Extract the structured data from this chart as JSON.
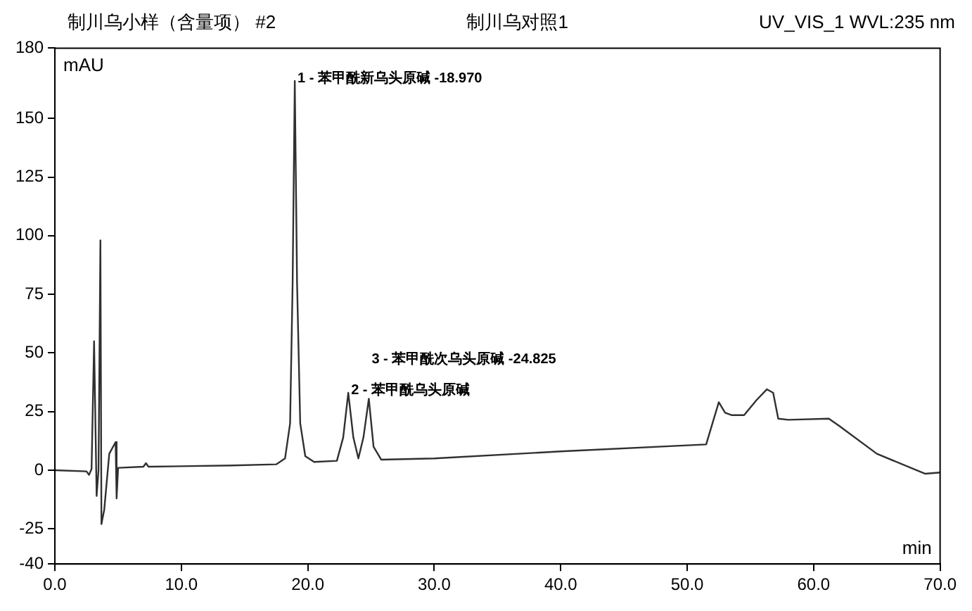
{
  "chart_data": {
    "type": "line",
    "title": "制川乌小样（含量项） #2",
    "subtitle": "制川乌对照1",
    "xlabel": "min",
    "ylabel": "mAU",
    "annotations": [
      "UV_VIS_1 WVL:235 nm",
      {
        "text": "1 - 苯甲酰新乌头原碱 -18.970",
        "x": 18.97,
        "y": 166
      },
      {
        "text": "2 - 苯甲酰乌头原碱",
        "x": 23.2,
        "y": 33
      },
      {
        "text": "3 - 苯甲酰次乌头原碱 -24.825",
        "x": 24.825,
        "y": 30.5
      }
    ],
    "x": [
      0,
      2.5,
      2.7,
      2.9,
      3.1,
      3.3,
      3.45,
      3.6,
      3.68,
      3.9,
      4.3,
      4.8,
      4.88,
      5.0,
      7.0,
      7.2,
      7.4,
      14,
      17.5,
      18.2,
      18.6,
      18.8,
      18.97,
      19.15,
      19.4,
      19.8,
      20.5,
      22.3,
      22.8,
      23.2,
      23.6,
      24.0,
      24.4,
      24.825,
      25.2,
      25.8,
      30,
      40,
      51.5,
      52.0,
      52.5,
      53.0,
      53.5,
      54.5,
      55.5,
      56.3,
      56.8,
      57.2,
      58,
      61.2,
      62,
      65,
      68.8,
      70
    ],
    "series": [
      {
        "color": "#303030",
        "values": [
          0,
          -0.5,
          -2,
          0.5,
          55,
          -11,
          0,
          98,
          -23,
          -17,
          7,
          12,
          -12,
          1,
          1.5,
          3,
          1.5,
          2,
          2.5,
          5,
          20,
          80,
          166,
          80,
          20,
          6,
          3.5,
          4,
          14,
          33,
          14,
          5,
          14,
          30.5,
          10,
          4.5,
          5,
          8,
          11,
          20,
          29,
          24.5,
          23.5,
          23.5,
          30,
          34.5,
          33,
          22,
          21.5,
          22,
          19,
          7,
          -1.5,
          -1
        ]
      }
    ],
    "xlim": [
      0,
      70
    ],
    "ylim": [
      -40,
      180
    ],
    "xticks": [
      {
        "value": 0,
        "label": "0.0"
      },
      {
        "value": 10,
        "label": "10.0"
      },
      {
        "value": 20,
        "label": "20.0"
      },
      {
        "value": 30,
        "label": "30.0"
      },
      {
        "value": 40,
        "label": "40.0"
      },
      {
        "value": 50,
        "label": "50.0"
      },
      {
        "value": 60,
        "label": "60.0"
      },
      {
        "value": 70,
        "label": "70.0"
      }
    ],
    "yticks": [
      -40,
      -25,
      0,
      25,
      50,
      75,
      100,
      125,
      150,
      180
    ],
    "grid": false,
    "legend": false,
    "marker": "none",
    "line_style": "solid"
  }
}
